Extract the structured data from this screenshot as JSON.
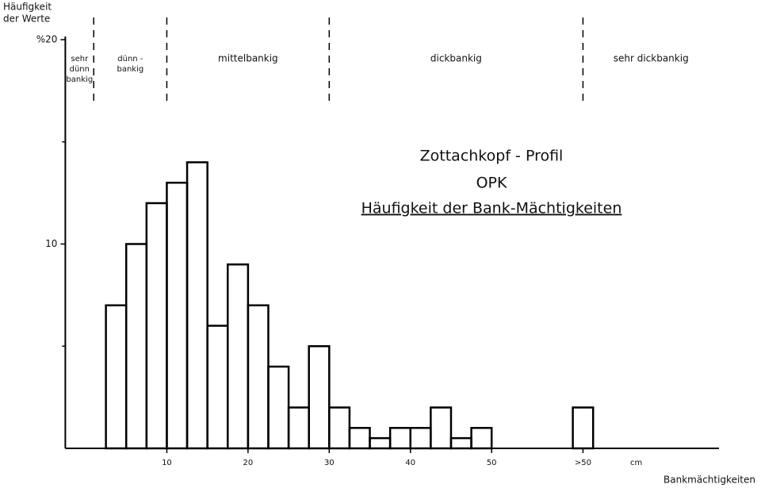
{
  "chart_data": {
    "type": "histogram",
    "annotations": [
      "Zottachkopf - Profil",
      "OPK",
      "Häufigkeit der Bank-Mächtigkeiten"
    ],
    "ylabel": [
      "Häufigkeit",
      "der Werte"
    ],
    "xlabel": "Bankmächtigkeiten",
    "xunit": "cm",
    "bins": [
      2.5,
      5,
      7.5,
      10,
      12.5,
      15,
      17.5,
      20,
      22.5,
      25,
      27.5,
      30,
      32.5,
      35,
      37.5,
      40,
      42.5,
      45,
      47.5,
      50,
      52.5,
      55,
      57.5,
      60,
      62.5
    ],
    "counts": [
      7,
      10,
      12,
      13,
      14,
      6,
      9,
      7,
      4,
      2,
      5,
      2,
      1,
      0.5,
      1,
      1,
      2,
      0.5,
      1,
      0,
      0,
      0,
      0,
      2
    ],
    "color": "#000000",
    "xlim": [
      -2.5,
      78
    ],
    "ylim": [
      0,
      20
    ],
    "xticks": [
      10,
      20,
      30,
      40,
      50,
      {
        "value": 61.25,
        "label": ">50"
      }
    ],
    "yticks": [
      10,
      {
        "value": 20,
        "label": "%20"
      }
    ],
    "yminor_ticks": [
      5,
      15
    ],
    "region_boundaries": [
      1,
      10,
      30,
      61.25
    ],
    "regions": [
      {
        "lines": [
          "sehr",
          "dünn",
          "bankig"
        ]
      },
      {
        "lines": [
          "dünn -",
          "bankig"
        ]
      },
      {
        "lines": [
          "mittelbankig"
        ]
      },
      {
        "lines": [
          "dickbankig"
        ]
      },
      {
        "lines": [
          "sehr dickbankig"
        ]
      }
    ]
  }
}
